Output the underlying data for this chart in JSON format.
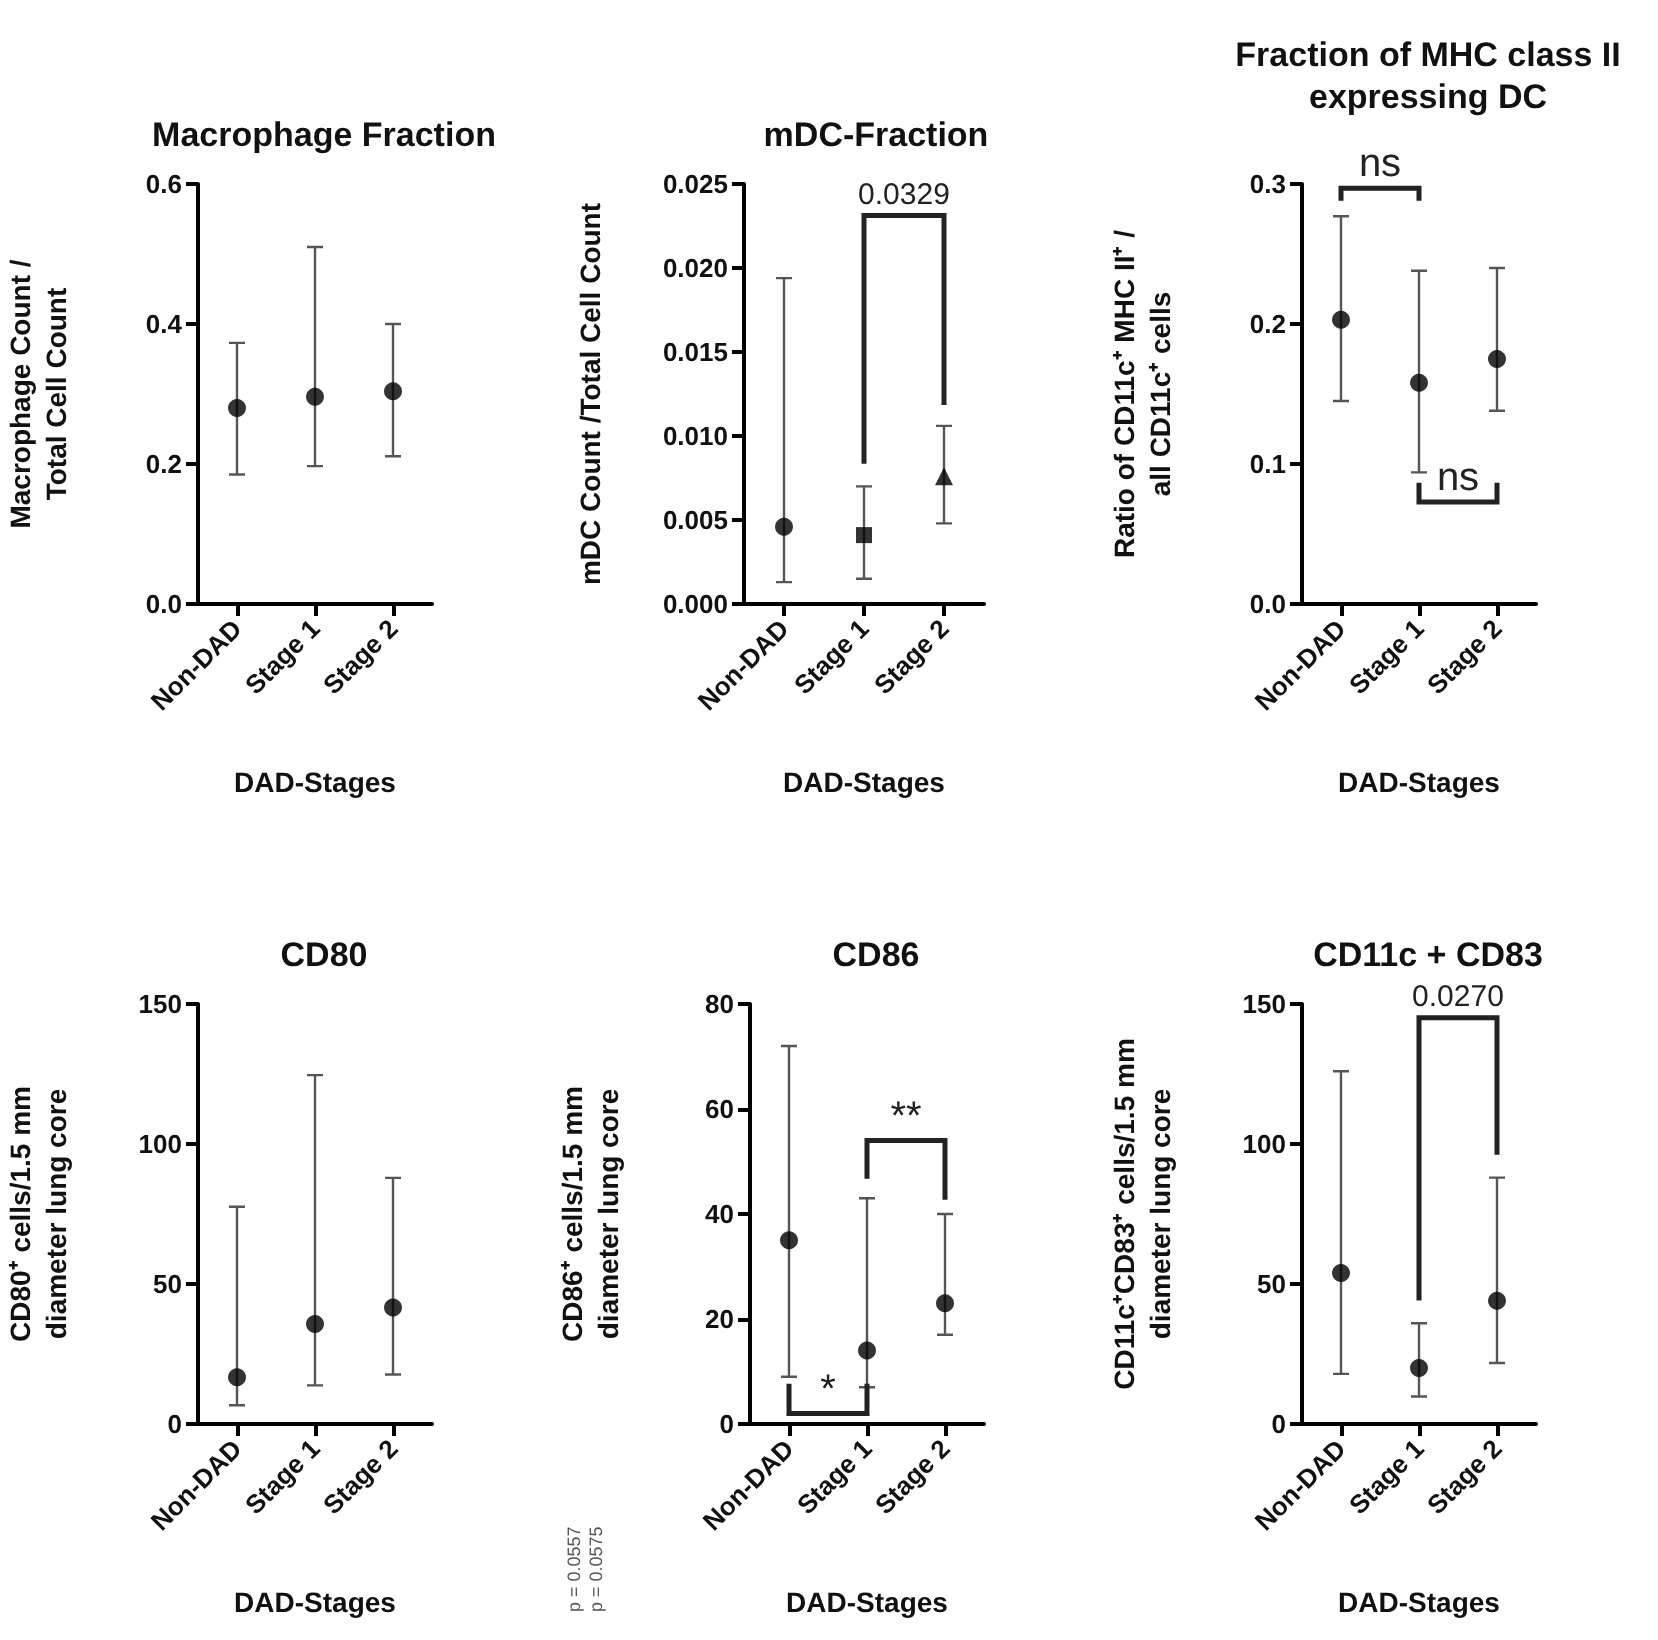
{
  "chart_data": [
    {
      "type": "scatter",
      "title": "Macrophage Fraction",
      "xlabel": "DAD-Stages",
      "ylabel": "Macrophage Count /\nTotal Cell Count",
      "categories": [
        "Non-DAD",
        "Stage 1",
        "Stage 2"
      ],
      "marker": "circle",
      "grid": false,
      "series": [
        {
          "color": "#000000",
          "values": [
            0.28,
            0.296,
            0.304
          ],
          "errors": [
            [
              0.185,
              0.373
            ],
            [
              0.197,
              0.51
            ],
            [
              0.211,
              0.4
            ]
          ]
        }
      ],
      "ylim": [
        0,
        0.6
      ],
      "yticks": [
        {
          "value": 0,
          "label": "0.0"
        },
        {
          "value": 0.2,
          "label": "0.2"
        },
        {
          "value": 0.4,
          "label": "0.4"
        },
        {
          "value": 0.6,
          "label": "0.6"
        }
      ]
    },
    {
      "type": "scatter",
      "title": "mDC-Fraction",
      "xlabel": "DAD-Stages",
      "ylabel": "mDC Count /Total Cell Count",
      "categories": [
        "Non-DAD",
        "Stage 1",
        "Stage 2"
      ],
      "grid": false,
      "series": [
        {
          "color": "#000000",
          "marker": "circle",
          "values": [
            0.0046,
            null,
            null
          ],
          "errors": [
            [
              0.0013,
              0.0194
            ],
            null,
            null
          ]
        },
        {
          "color": "#000000",
          "marker": "square",
          "values": [
            null,
            0.0041,
            null
          ],
          "errors": [
            null,
            [
              0.0015,
              0.007
            ],
            null
          ]
        },
        {
          "color": "#000000",
          "marker": "triangle",
          "values": [
            null,
            null,
            0.0076
          ],
          "errors": [
            null,
            null,
            [
              0.0048,
              0.0106
            ]
          ]
        }
      ],
      "ylim": [
        0,
        0.025
      ],
      "yticks": [
        {
          "value": 0,
          "label": "0.000"
        },
        {
          "value": 0.005,
          "label": "0.005"
        },
        {
          "value": 0.01,
          "label": "0.010"
        },
        {
          "value": 0.015,
          "label": "0.015"
        },
        {
          "value": 0.02,
          "label": "0.020"
        },
        {
          "value": 0.025,
          "label": "0.025"
        }
      ],
      "annotations": [
        "0.0329"
      ]
    },
    {
      "type": "scatter",
      "title": "Fraction of MHC class II\nexpressing DC",
      "xlabel": "DAD-Stages",
      "ylabel": "Ratio of CD11c⁺ MHC II⁺ /\nall CD11c⁺ cells",
      "categories": [
        "Non-DAD",
        "Stage 1",
        "Stage 2"
      ],
      "marker": "circle",
      "grid": false,
      "series": [
        {
          "color": "#000000",
          "values": [
            0.203,
            0.158,
            0.175
          ],
          "errors": [
            [
              0.145,
              0.277
            ],
            [
              0.094,
              0.238
            ],
            [
              0.138,
              0.24
            ]
          ]
        }
      ],
      "ylim": [
        0,
        0.3
      ],
      "yticks": [
        {
          "value": 0,
          "label": "0.0"
        },
        {
          "value": 0.1,
          "label": "0.1"
        },
        {
          "value": 0.2,
          "label": "0.2"
        },
        {
          "value": 0.3,
          "label": "0.3"
        }
      ],
      "annotations": [
        "ns",
        "ns"
      ]
    },
    {
      "type": "scatter",
      "title": "CD80",
      "xlabel": "DAD-Stages",
      "ylabel": "CD80⁺ cells/1.5 mm\ndiameter lung core",
      "categories": [
        "Non-DAD",
        "Stage 1",
        "Stage 2"
      ],
      "marker": "circle",
      "grid": false,
      "series": [
        {
          "color": "#000000",
          "values": [
            16.7,
            35.7,
            41.6
          ],
          "errors": [
            [
              6.7,
              77.6
            ],
            [
              13.8,
              124.6
            ],
            [
              17.7,
              87.9
            ]
          ]
        }
      ],
      "ylim": [
        0,
        150
      ],
      "yticks": [
        0,
        50,
        100,
        150
      ]
    },
    {
      "type": "scatter",
      "title": "CD86",
      "xlabel": "DAD-Stages",
      "ylabel": "CD86⁺ cells/1.5 mm\ndiameter lung core",
      "categories": [
        "Non-DAD",
        "Stage 1",
        "Stage 2"
      ],
      "marker": "circle",
      "grid": false,
      "series": [
        {
          "color": "#000000",
          "values": [
            35,
            14,
            23
          ],
          "errors": [
            [
              9,
              72
            ],
            [
              7,
              43
            ],
            [
              17,
              40
            ]
          ]
        }
      ],
      "ylim": [
        0,
        80
      ],
      "yticks": [
        0,
        20,
        40,
        60,
        80
      ],
      "annotations": [
        "*",
        "**",
        "p = 0.0557",
        "p = 0.0575"
      ]
    },
    {
      "type": "scatter",
      "title": "CD11c + CD83",
      "xlabel": "DAD-Stages",
      "ylabel": "CD11c⁺CD83⁺ cells/1.5 mm\ndiameter lung core",
      "categories": [
        "Non-DAD",
        "Stage 1",
        "Stage 2"
      ],
      "marker": "circle",
      "grid": false,
      "series": [
        {
          "color": "#000000",
          "values": [
            53.9,
            20,
            44
          ],
          "errors": [
            [
              17.9,
              126
            ],
            [
              9.8,
              36
            ],
            [
              21.8,
              88
            ]
          ]
        }
      ],
      "ylim": [
        0,
        150
      ],
      "yticks": [
        0,
        50,
        100,
        150
      ],
      "annotations": [
        "0.0270"
      ]
    }
  ]
}
